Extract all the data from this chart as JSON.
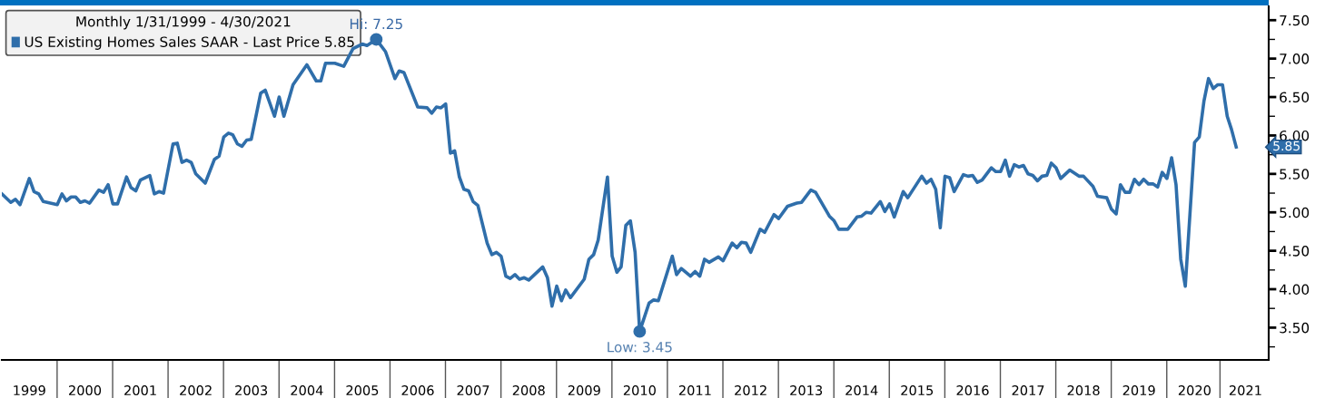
{
  "chart_data": {
    "type": "line",
    "legend_title": "Monthly 1/31/1999 - 4/30/2021",
    "legend": "top left",
    "grid": false,
    "marker": "none",
    "line_style": "solid",
    "x": [
      "1999-01",
      "1999-03",
      "1999-04",
      "1999-05",
      "1999-07",
      "1999-08",
      "1999-09",
      "1999-10",
      "2000-01",
      "2000-02",
      "2000-03",
      "2000-04",
      "2000-05",
      "2000-06",
      "2000-07",
      "2000-08",
      "2000-10",
      "2000-11",
      "2000-12",
      "2001-01",
      "2001-02",
      "2001-04",
      "2001-05",
      "2001-06",
      "2001-07",
      "2001-09",
      "2001-10",
      "2001-11",
      "2001-12",
      "2002-02",
      "2002-03",
      "2002-04",
      "2002-05",
      "2002-06",
      "2002-07",
      "2002-09",
      "2002-11",
      "2002-12",
      "2003-01",
      "2003-02",
      "2003-03",
      "2003-04",
      "2003-05",
      "2003-06",
      "2003-07",
      "2003-09",
      "2003-10",
      "2003-12",
      "2004-01",
      "2004-02",
      "2004-04",
      "2004-07",
      "2004-09",
      "2004-10",
      "2004-11",
      "2005-01",
      "2005-03",
      "2005-05",
      "2005-07",
      "2005-08",
      "2005-10",
      "2005-12",
      "2006-02",
      "2006-03",
      "2006-04",
      "2006-07",
      "2006-09",
      "2006-10",
      "2006-11",
      "2006-12",
      "2007-01",
      "2007-02",
      "2007-03",
      "2007-04",
      "2007-05",
      "2007-06",
      "2007-07",
      "2007-08",
      "2007-10",
      "2007-11",
      "2007-12",
      "2008-01",
      "2008-02",
      "2008-03",
      "2008-04",
      "2008-05",
      "2008-06",
      "2008-07",
      "2008-10",
      "2008-11",
      "2008-12",
      "2009-01",
      "2009-02",
      "2009-03",
      "2009-04",
      "2009-07",
      "2009-08",
      "2009-09",
      "2009-10",
      "2009-12",
      "2010-01",
      "2010-02",
      "2010-03",
      "2010-04",
      "2010-05",
      "2010-06",
      "2010-07",
      "2010-09",
      "2010-10",
      "2010-11",
      "2011-02",
      "2011-03",
      "2011-04",
      "2011-06",
      "2011-07",
      "2011-08",
      "2011-09",
      "2011-10",
      "2011-12",
      "2012-01",
      "2012-03",
      "2012-04",
      "2012-05",
      "2012-06",
      "2012-07",
      "2012-09",
      "2012-10",
      "2012-12",
      "2013-01",
      "2013-03",
      "2013-05",
      "2013-06",
      "2013-08",
      "2013-09",
      "2013-12",
      "2014-01",
      "2014-02",
      "2014-04",
      "2014-06",
      "2014-07",
      "2014-08",
      "2014-09",
      "2014-11",
      "2014-12",
      "2015-01",
      "2015-02",
      "2015-04",
      "2015-05",
      "2015-08",
      "2015-09",
      "2015-10",
      "2015-11",
      "2015-12",
      "2016-01",
      "2016-02",
      "2016-03",
      "2016-05",
      "2016-06",
      "2016-07",
      "2016-08",
      "2016-09",
      "2016-11",
      "2016-12",
      "2017-01",
      "2017-02",
      "2017-03",
      "2017-04",
      "2017-05",
      "2017-06",
      "2017-07",
      "2017-08",
      "2017-09",
      "2017-10",
      "2017-11",
      "2017-12",
      "2018-01",
      "2018-02",
      "2018-04",
      "2018-06",
      "2018-07",
      "2018-09",
      "2018-10",
      "2018-12",
      "2019-01",
      "2019-02",
      "2019-03",
      "2019-04",
      "2019-05",
      "2019-06",
      "2019-07",
      "2019-08",
      "2019-09",
      "2019-10",
      "2019-11",
      "2019-12",
      "2020-01",
      "2020-02",
      "2020-03",
      "2020-04",
      "2020-05",
      "2020-07",
      "2020-08",
      "2020-09",
      "2020-10",
      "2020-11",
      "2020-12",
      "2021-01",
      "2021-02",
      "2021-03",
      "2021-04"
    ],
    "series": [
      {
        "name": "US Existing Homes Sales SAAR - Last Price 5.85",
        "color": "#2f6eaa",
        "values": [
          5.24,
          5.13,
          5.17,
          5.1,
          5.44,
          5.27,
          5.24,
          5.14,
          5.1,
          5.24,
          5.15,
          5.2,
          5.2,
          5.13,
          5.15,
          5.12,
          5.29,
          5.26,
          5.36,
          5.11,
          5.11,
          5.46,
          5.32,
          5.28,
          5.42,
          5.48,
          5.24,
          5.27,
          5.25,
          5.89,
          5.9,
          5.65,
          5.68,
          5.65,
          5.5,
          5.38,
          5.69,
          5.73,
          5.98,
          6.03,
          6.01,
          5.89,
          5.86,
          5.94,
          5.95,
          6.55,
          6.59,
          6.25,
          6.5,
          6.25,
          6.66,
          6.92,
          6.71,
          6.71,
          6.94,
          6.94,
          6.9,
          7.13,
          7.19,
          7.17,
          7.25,
          7.09,
          6.74,
          6.84,
          6.82,
          6.37,
          6.36,
          6.29,
          6.37,
          6.36,
          6.41,
          5.77,
          5.8,
          5.46,
          5.3,
          5.28,
          5.14,
          5.09,
          4.6,
          4.45,
          4.48,
          4.43,
          4.17,
          4.14,
          4.19,
          4.13,
          4.15,
          4.12,
          4.29,
          4.15,
          3.78,
          4.04,
          3.85,
          3.99,
          3.89,
          4.13,
          4.39,
          4.45,
          4.64,
          5.46,
          4.43,
          4.22,
          4.29,
          4.83,
          4.89,
          4.48,
          3.45,
          3.82,
          3.86,
          3.85,
          4.43,
          4.19,
          4.27,
          4.17,
          4.23,
          4.17,
          4.39,
          4.35,
          4.42,
          4.37,
          4.6,
          4.54,
          4.61,
          4.6,
          4.48,
          4.78,
          4.74,
          4.97,
          4.92,
          5.08,
          5.12,
          5.13,
          5.29,
          5.26,
          4.95,
          4.89,
          4.78,
          4.78,
          4.94,
          4.95,
          5.0,
          4.99,
          5.14,
          5.01,
          5.11,
          4.94,
          5.27,
          5.19,
          5.47,
          5.38,
          5.43,
          5.3,
          4.8,
          5.47,
          5.45,
          5.27,
          5.49,
          5.47,
          5.48,
          5.39,
          5.42,
          5.58,
          5.53,
          5.53,
          5.68,
          5.47,
          5.62,
          5.59,
          5.61,
          5.5,
          5.48,
          5.41,
          5.47,
          5.48,
          5.64,
          5.58,
          5.44,
          5.55,
          5.47,
          5.47,
          5.34,
          5.21,
          5.19,
          5.04,
          4.98,
          5.36,
          5.26,
          5.26,
          5.43,
          5.36,
          5.43,
          5.37,
          5.37,
          5.33,
          5.52,
          5.44,
          5.71,
          5.36,
          4.39,
          4.04,
          5.91,
          5.98,
          6.45,
          6.74,
          6.61,
          6.66,
          6.66,
          6.25,
          6.08,
          5.85
        ]
      }
    ],
    "xlim": [
      "1999-01-01",
      "2021-11-01"
    ],
    "xticks": [
      {
        "value": "1999-07-01",
        "label": "1999"
      },
      {
        "value": "2000-07-01",
        "label": "2000"
      },
      {
        "value": "2001-07-01",
        "label": "2001"
      },
      {
        "value": "2002-07-01",
        "label": "2002"
      },
      {
        "value": "2003-07-01",
        "label": "2003"
      },
      {
        "value": "2004-07-01",
        "label": "2004"
      },
      {
        "value": "2005-07-01",
        "label": "2005"
      },
      {
        "value": "2006-07-01",
        "label": "2006"
      },
      {
        "value": "2007-07-01",
        "label": "2007"
      },
      {
        "value": "2008-07-01",
        "label": "2008"
      },
      {
        "value": "2009-07-01",
        "label": "2009"
      },
      {
        "value": "2010-07-01",
        "label": "2010"
      },
      {
        "value": "2011-07-01",
        "label": "2011"
      },
      {
        "value": "2012-07-01",
        "label": "2012"
      },
      {
        "value": "2013-07-01",
        "label": "2013"
      },
      {
        "value": "2014-07-01",
        "label": "2014"
      },
      {
        "value": "2015-07-01",
        "label": "2015"
      },
      {
        "value": "2016-07-01",
        "label": "2016"
      },
      {
        "value": "2017-07-01",
        "label": "2017"
      },
      {
        "value": "2018-07-01",
        "label": "2018"
      },
      {
        "value": "2019-07-01",
        "label": "2019"
      },
      {
        "value": "2020-07-01",
        "label": "2020"
      },
      {
        "value": "2021-06-01",
        "label": "2021"
      }
    ],
    "ylim": [
      3.08,
      7.68
    ],
    "yticks": [
      {
        "value": 3.25,
        "label": null
      },
      {
        "value": 3.5,
        "label": "3.50"
      },
      {
        "value": 3.75,
        "label": null
      },
      {
        "value": 4.0,
        "label": "4.00"
      },
      {
        "value": 4.25,
        "label": null
      },
      {
        "value": 4.5,
        "label": "4.50"
      },
      {
        "value": 4.75,
        "label": null
      },
      {
        "value": 5.0,
        "label": "5.00"
      },
      {
        "value": 5.25,
        "label": null
      },
      {
        "value": 5.5,
        "label": "5.50"
      },
      {
        "value": 5.75,
        "label": null
      },
      {
        "value": 6.0,
        "label": "6.00"
      },
      {
        "value": 6.25,
        "label": null
      },
      {
        "value": 6.5,
        "label": "6.50"
      },
      {
        "value": 6.75,
        "label": null
      },
      {
        "value": 7.0,
        "label": "7.00"
      },
      {
        "value": 7.25,
        "label": null
      },
      {
        "value": 7.5,
        "label": "7.50"
      }
    ],
    "annotations": [
      {
        "text": "Low: 3.45",
        "x": "2010-07",
        "y": 3.45
      },
      {
        "text": "Hi: 7.25",
        "x": "2005-10",
        "y": 7.25
      },
      {
        "text": "5.85",
        "x": "2021-04",
        "y": 5.85
      }
    ]
  }
}
